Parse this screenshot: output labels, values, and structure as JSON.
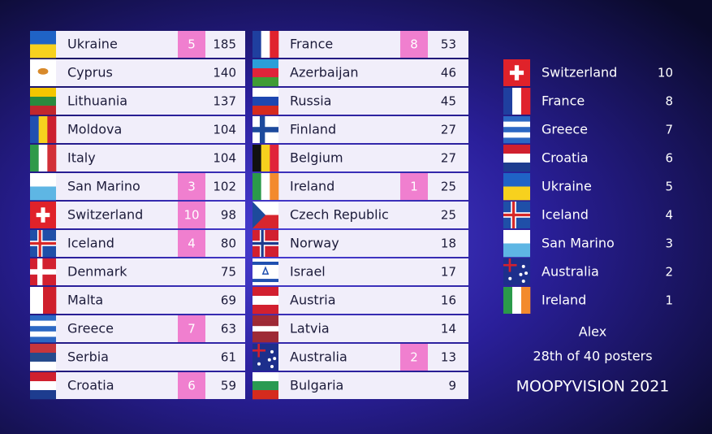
{
  "columns": [
    {
      "rows": [
        {
          "country": "Ukraine",
          "awarded": 5,
          "total": 185
        },
        {
          "country": "Cyprus",
          "awarded": null,
          "total": 140
        },
        {
          "country": "Lithuania",
          "awarded": null,
          "total": 137
        },
        {
          "country": "Moldova",
          "awarded": null,
          "total": 104
        },
        {
          "country": "Italy",
          "awarded": null,
          "total": 104
        },
        {
          "country": "San Marino",
          "awarded": 3,
          "total": 102
        },
        {
          "country": "Switzerland",
          "awarded": 10,
          "total": 98
        },
        {
          "country": "Iceland",
          "awarded": 4,
          "total": 80
        },
        {
          "country": "Denmark",
          "awarded": null,
          "total": 75
        },
        {
          "country": "Malta",
          "awarded": null,
          "total": 69
        },
        {
          "country": "Greece",
          "awarded": 7,
          "total": 63
        },
        {
          "country": "Serbia",
          "awarded": null,
          "total": 61
        },
        {
          "country": "Croatia",
          "awarded": 6,
          "total": 59
        }
      ]
    },
    {
      "rows": [
        {
          "country": "France",
          "awarded": 8,
          "total": 53
        },
        {
          "country": "Azerbaijan",
          "awarded": null,
          "total": 46
        },
        {
          "country": "Russia",
          "awarded": null,
          "total": 45
        },
        {
          "country": "Finland",
          "awarded": null,
          "total": 27
        },
        {
          "country": "Belgium",
          "awarded": null,
          "total": 27
        },
        {
          "country": "Ireland",
          "awarded": 1,
          "total": 25
        },
        {
          "country": "Czech Republic",
          "awarded": null,
          "total": 25
        },
        {
          "country": "Norway",
          "awarded": null,
          "total": 18
        },
        {
          "country": "Israel",
          "awarded": null,
          "total": 17
        },
        {
          "country": "Austria",
          "awarded": null,
          "total": 16
        },
        {
          "country": "Latvia",
          "awarded": null,
          "total": 14
        },
        {
          "country": "Australia",
          "awarded": 2,
          "total": 13
        },
        {
          "country": "Bulgaria",
          "awarded": null,
          "total": 9
        }
      ]
    }
  ],
  "jury": {
    "rows": [
      {
        "country": "Switzerland",
        "points": 10
      },
      {
        "country": "France",
        "points": 8
      },
      {
        "country": "Greece",
        "points": 7
      },
      {
        "country": "Croatia",
        "points": 6
      },
      {
        "country": "Ukraine",
        "points": 5
      },
      {
        "country": "Iceland",
        "points": 4
      },
      {
        "country": "San Marino",
        "points": 3
      },
      {
        "country": "Australia",
        "points": 2
      },
      {
        "country": "Ireland",
        "points": 1
      }
    ],
    "voter": "Alex",
    "rank": "28th of 40 posters",
    "show": "MOOPYVISION 2021"
  }
}
